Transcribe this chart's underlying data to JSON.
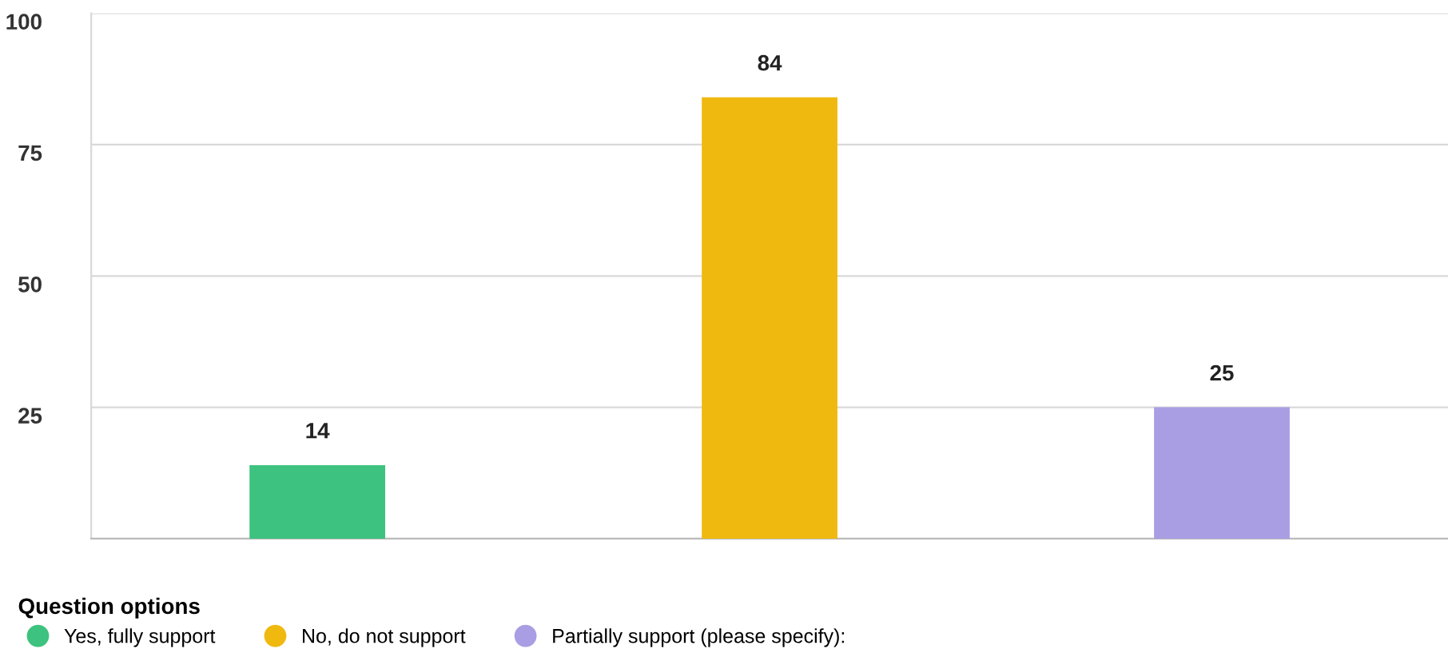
{
  "chart_data": {
    "type": "bar",
    "legend_title": "Question options",
    "categories": [
      null,
      null,
      null
    ],
    "series": [
      {
        "name": "Yes, fully support",
        "color": "#3ec27f",
        "values": [
          14,
          null,
          null
        ]
      },
      {
        "name": "No, do not support",
        "color": "#f0b90f",
        "values": [
          null,
          84,
          null
        ]
      },
      {
        "name": "Partially support (please specify):",
        "color": "#a99ee3",
        "values": [
          null,
          null,
          25
        ]
      }
    ],
    "ylim": [
      0,
      100
    ],
    "yticks": [
      25,
      50,
      75,
      100
    ],
    "grid": "y",
    "data_labels": true,
    "legend": "bottom left"
  }
}
